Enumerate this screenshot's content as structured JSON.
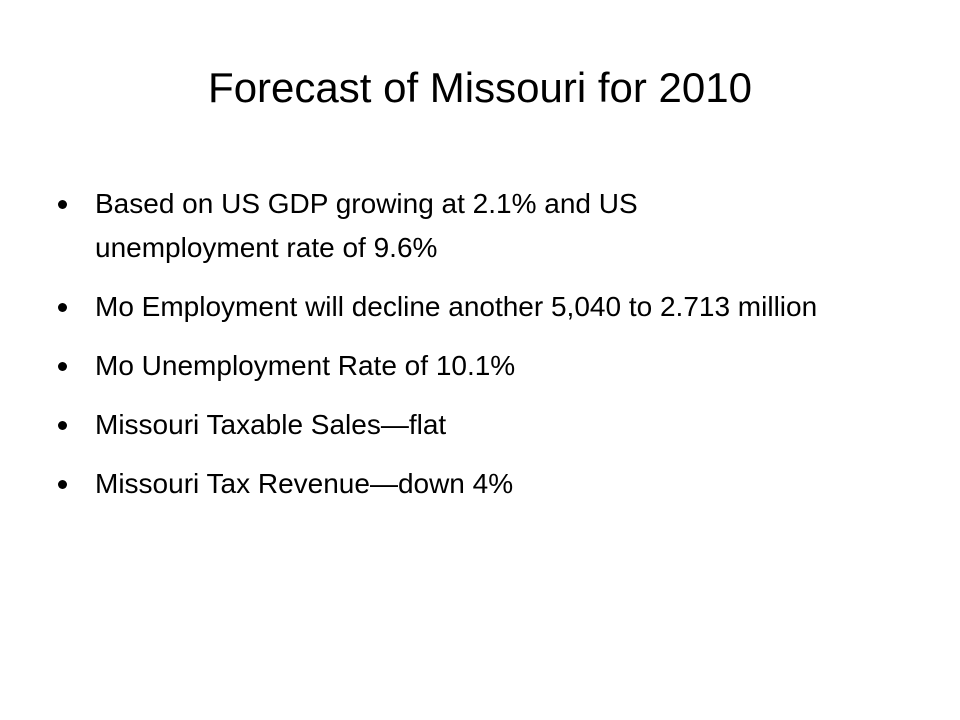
{
  "title": "Forecast of Missouri for 2010",
  "bullets": [
    "Based on US GDP growing at 2.1% and US unemployment rate of 9.6%",
    "Mo Employment will decline another 5,040 to 2.713 million",
    "Mo Unemployment Rate of 10.1%",
    "Missouri Taxable Sales—flat",
    "Missouri Tax Revenue—down 4%"
  ]
}
